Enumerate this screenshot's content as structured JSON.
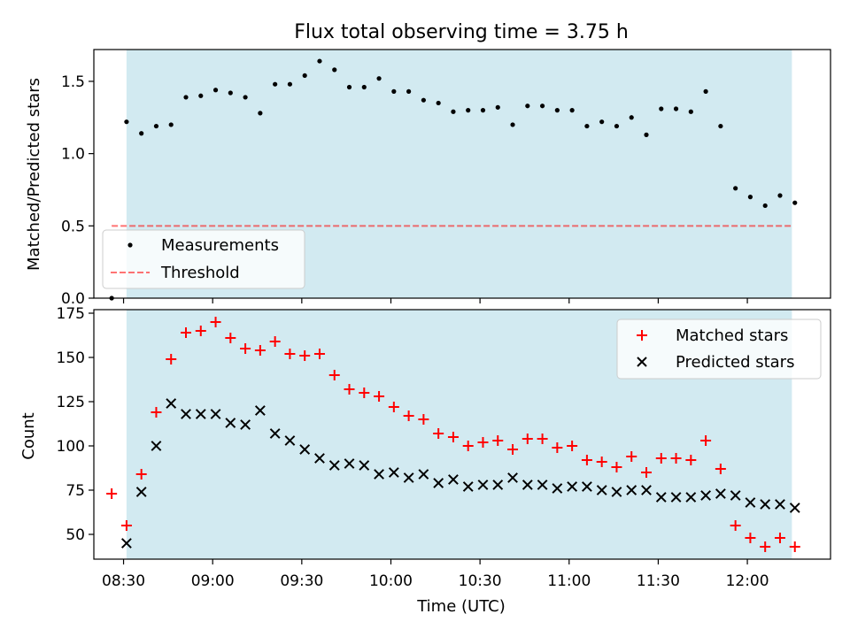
{
  "figure_title": "Flux total observing time = 3.75 h",
  "colors": {
    "observing_span": "#add8e6",
    "measurements": "#000000",
    "threshold": "#ff0000",
    "matched": "#ff0000",
    "predicted": "#000000"
  },
  "chart_data": [
    {
      "type": "scatter",
      "title": "Flux total observing time = 3.75 h",
      "xlabel": "",
      "ylabel": "Matched/Predicted stars",
      "x_unit": "time of day (UTC)",
      "xlim": [
        "08:20",
        "12:28"
      ],
      "ylim": [
        0.0,
        1.72
      ],
      "yticks": [
        "0.0",
        "0.5",
        "1.0",
        "1.5"
      ],
      "xtick_values": [
        "08:30",
        "09:00",
        "09:30",
        "10:00",
        "10:30",
        "11:00",
        "11:30",
        "12:00"
      ],
      "xtick_labels_visible": false,
      "shaded_span": [
        "08:31",
        "12:15"
      ],
      "legend_position": "lower-left",
      "legend": [
        "Measurements",
        "Threshold"
      ],
      "threshold": {
        "name": "Threshold",
        "value": 0.5,
        "x": [
          "08:26",
          "12:15"
        ],
        "style": "dashed"
      },
      "series": [
        {
          "name": "Measurements",
          "marker": "dot",
          "points": [
            [
              "08:26",
              0.0
            ],
            [
              "08:31",
              1.22
            ],
            [
              "08:36",
              1.14
            ],
            [
              "08:41",
              1.19
            ],
            [
              "08:46",
              1.2
            ],
            [
              "08:51",
              1.39
            ],
            [
              "08:56",
              1.4
            ],
            [
              "09:01",
              1.44
            ],
            [
              "09:06",
              1.42
            ],
            [
              "09:11",
              1.39
            ],
            [
              "09:16",
              1.28
            ],
            [
              "09:21",
              1.48
            ],
            [
              "09:26",
              1.48
            ],
            [
              "09:31",
              1.54
            ],
            [
              "09:36",
              1.64
            ],
            [
              "09:41",
              1.58
            ],
            [
              "09:46",
              1.46
            ],
            [
              "09:51",
              1.46
            ],
            [
              "09:56",
              1.52
            ],
            [
              "10:01",
              1.43
            ],
            [
              "10:06",
              1.43
            ],
            [
              "10:11",
              1.37
            ],
            [
              "10:16",
              1.35
            ],
            [
              "10:21",
              1.29
            ],
            [
              "10:26",
              1.3
            ],
            [
              "10:31",
              1.3
            ],
            [
              "10:36",
              1.32
            ],
            [
              "10:41",
              1.2
            ],
            [
              "10:46",
              1.33
            ],
            [
              "10:51",
              1.33
            ],
            [
              "10:56",
              1.3
            ],
            [
              "11:01",
              1.3
            ],
            [
              "11:06",
              1.19
            ],
            [
              "11:11",
              1.22
            ],
            [
              "11:16",
              1.19
            ],
            [
              "11:21",
              1.25
            ],
            [
              "11:26",
              1.13
            ],
            [
              "11:31",
              1.31
            ],
            [
              "11:36",
              1.31
            ],
            [
              "11:41",
              1.29
            ],
            [
              "11:46",
              1.43
            ],
            [
              "11:51",
              1.19
            ],
            [
              "11:56",
              0.76
            ],
            [
              "12:01",
              0.7
            ],
            [
              "12:06",
              0.64
            ],
            [
              "12:11",
              0.71
            ],
            [
              "12:16",
              0.66
            ]
          ]
        }
      ]
    },
    {
      "type": "scatter",
      "title": "",
      "xlabel": "Time (UTC)",
      "ylabel": "Count",
      "x_unit": "time of day (UTC)",
      "xlim": [
        "08:20",
        "12:28"
      ],
      "ylim": [
        36,
        177
      ],
      "yticks": [
        "50",
        "75",
        "100",
        "125",
        "150",
        "175"
      ],
      "xticks": [
        "08:30",
        "09:00",
        "09:30",
        "10:00",
        "10:30",
        "11:00",
        "11:30",
        "12:00"
      ],
      "shaded_span": [
        "08:31",
        "12:15"
      ],
      "legend_position": "upper-right",
      "legend": [
        "Matched stars",
        "Predicted stars"
      ],
      "series": [
        {
          "name": "Matched stars",
          "marker": "plus",
          "points": [
            [
              "08:26",
              73
            ],
            [
              "08:31",
              55
            ],
            [
              "08:36",
              84
            ],
            [
              "08:41",
              119
            ],
            [
              "08:46",
              149
            ],
            [
              "08:51",
              164
            ],
            [
              "08:56",
              165
            ],
            [
              "09:01",
              170
            ],
            [
              "09:06",
              161
            ],
            [
              "09:11",
              155
            ],
            [
              "09:16",
              154
            ],
            [
              "09:21",
              159
            ],
            [
              "09:26",
              152
            ],
            [
              "09:31",
              151
            ],
            [
              "09:36",
              152
            ],
            [
              "09:41",
              140
            ],
            [
              "09:46",
              132
            ],
            [
              "09:51",
              130
            ],
            [
              "09:56",
              128
            ],
            [
              "10:01",
              122
            ],
            [
              "10:06",
              117
            ],
            [
              "10:11",
              115
            ],
            [
              "10:16",
              107
            ],
            [
              "10:21",
              105
            ],
            [
              "10:26",
              100
            ],
            [
              "10:31",
              102
            ],
            [
              "10:36",
              103
            ],
            [
              "10:41",
              98
            ],
            [
              "10:46",
              104
            ],
            [
              "10:51",
              104
            ],
            [
              "10:56",
              99
            ],
            [
              "11:01",
              100
            ],
            [
              "11:06",
              92
            ],
            [
              "11:11",
              91
            ],
            [
              "11:16",
              88
            ],
            [
              "11:21",
              94
            ],
            [
              "11:26",
              85
            ],
            [
              "11:31",
              93
            ],
            [
              "11:36",
              93
            ],
            [
              "11:41",
              92
            ],
            [
              "11:46",
              103
            ],
            [
              "11:51",
              87
            ],
            [
              "11:56",
              55
            ],
            [
              "12:01",
              48
            ],
            [
              "12:06",
              43
            ],
            [
              "12:11",
              48
            ],
            [
              "12:16",
              43
            ]
          ]
        },
        {
          "name": "Predicted stars",
          "marker": "x",
          "points": [
            [
              "08:31",
              45
            ],
            [
              "08:36",
              74
            ],
            [
              "08:41",
              100
            ],
            [
              "08:46",
              124
            ],
            [
              "08:51",
              118
            ],
            [
              "08:56",
              118
            ],
            [
              "09:01",
              118
            ],
            [
              "09:06",
              113
            ],
            [
              "09:11",
              112
            ],
            [
              "09:16",
              120
            ],
            [
              "09:21",
              107
            ],
            [
              "09:26",
              103
            ],
            [
              "09:31",
              98
            ],
            [
              "09:36",
              93
            ],
            [
              "09:41",
              89
            ],
            [
              "09:46",
              90
            ],
            [
              "09:51",
              89
            ],
            [
              "09:56",
              84
            ],
            [
              "10:01",
              85
            ],
            [
              "10:06",
              82
            ],
            [
              "10:11",
              84
            ],
            [
              "10:16",
              79
            ],
            [
              "10:21",
              81
            ],
            [
              "10:26",
              77
            ],
            [
              "10:31",
              78
            ],
            [
              "10:36",
              78
            ],
            [
              "10:41",
              82
            ],
            [
              "10:46",
              78
            ],
            [
              "10:51",
              78
            ],
            [
              "10:56",
              76
            ],
            [
              "11:01",
              77
            ],
            [
              "11:06",
              77
            ],
            [
              "11:11",
              75
            ],
            [
              "11:16",
              74
            ],
            [
              "11:21",
              75
            ],
            [
              "11:26",
              75
            ],
            [
              "11:31",
              71
            ],
            [
              "11:36",
              71
            ],
            [
              "11:41",
              71
            ],
            [
              "11:46",
              72
            ],
            [
              "11:51",
              73
            ],
            [
              "11:56",
              72
            ],
            [
              "12:01",
              68
            ],
            [
              "12:06",
              67
            ],
            [
              "12:11",
              67
            ],
            [
              "12:16",
              65
            ]
          ]
        }
      ]
    }
  ]
}
